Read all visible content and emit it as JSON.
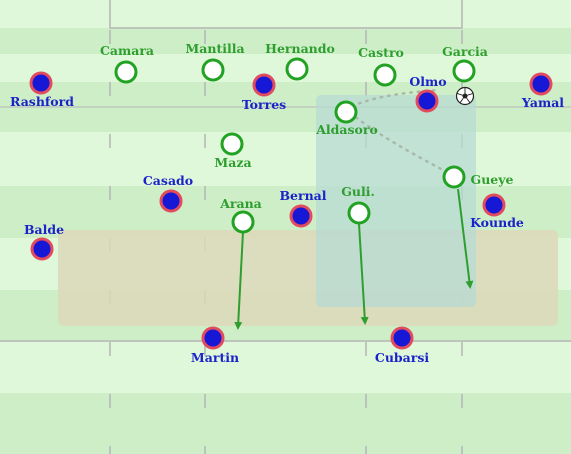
{
  "colors": {
    "stripe_light": "#dff8da",
    "stripe_dark": "#cdeec6",
    "line": "#b5b5b5",
    "home_ring": "#22a222",
    "away_fill": "#1717d6",
    "away_ring": "#e24a5e",
    "arrow": "#2e9e2e",
    "zone_highlight": "#b7dbd3",
    "zone_band": "#dcd8b8"
  },
  "home_players": [
    {
      "name": "Camara"
    },
    {
      "name": "Mantilla"
    },
    {
      "name": "Hernando"
    },
    {
      "name": "Castro"
    },
    {
      "name": "Garcia"
    },
    {
      "name": "Aldasoro"
    },
    {
      "name": "Maza"
    },
    {
      "name": "Gueye"
    },
    {
      "name": "Arana"
    },
    {
      "name": "Guli."
    }
  ],
  "away_players": [
    {
      "name": "Rashford"
    },
    {
      "name": "Torres"
    },
    {
      "name": "Olmo"
    },
    {
      "name": "Yamal"
    },
    {
      "name": "Casado"
    },
    {
      "name": "Bernal"
    },
    {
      "name": "Kounde"
    },
    {
      "name": "Balde"
    },
    {
      "name": "Martin"
    },
    {
      "name": "Cubarsi"
    }
  ],
  "ball_icon": "soccer-ball-icon"
}
